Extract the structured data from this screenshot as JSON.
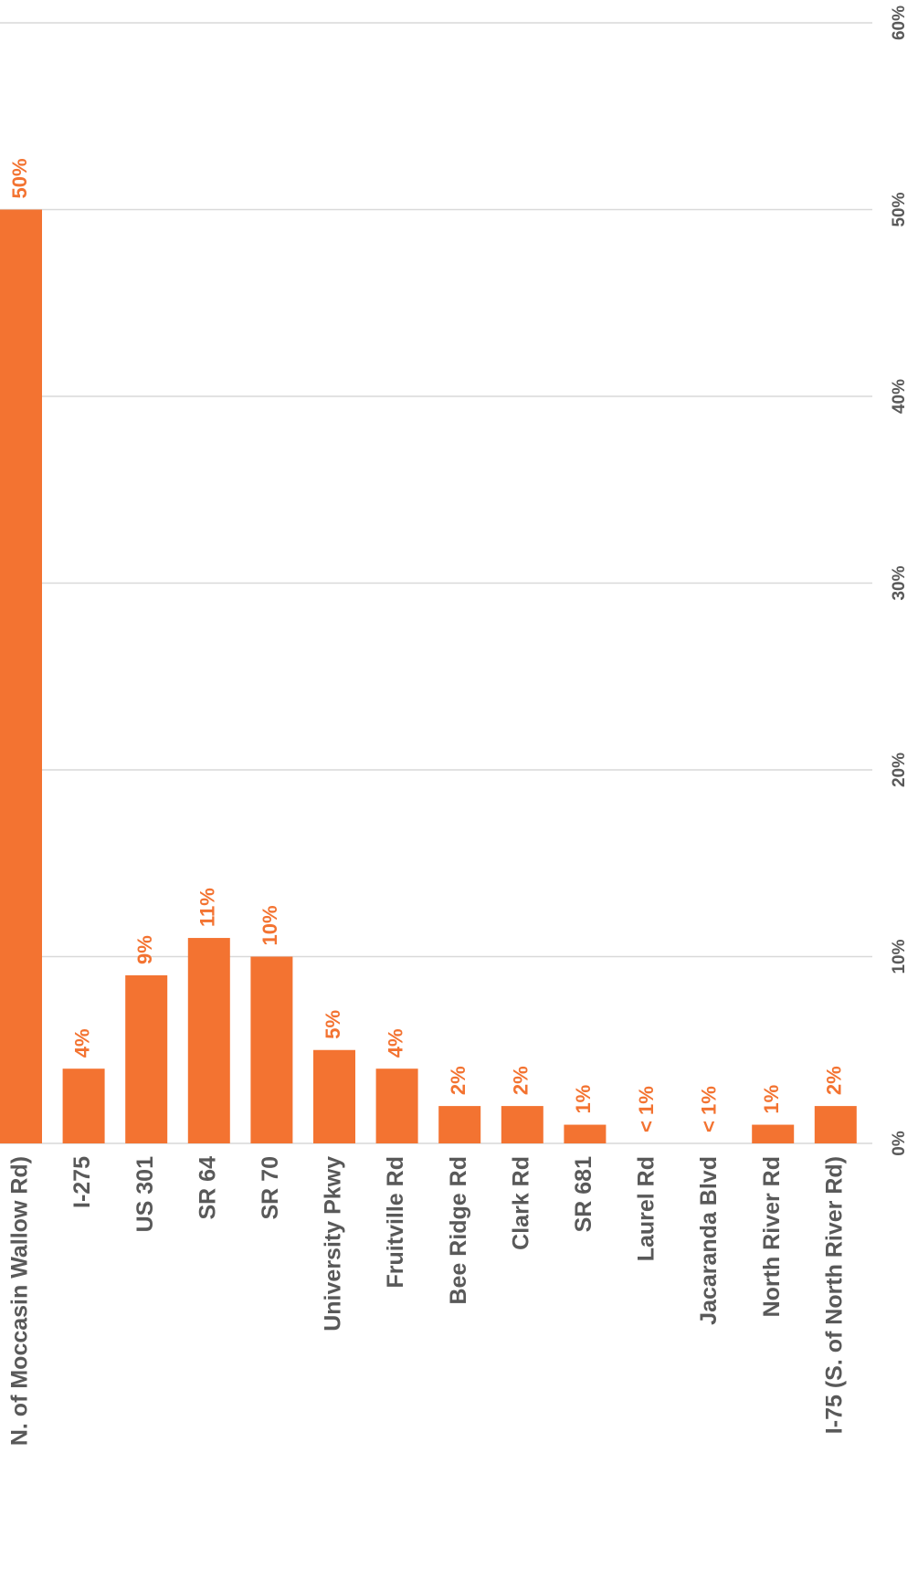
{
  "chart_data": {
    "type": "bar",
    "categories": [
      "N. of Moccasin Wallow Rd)",
      "I-275",
      "US 301",
      "SR 64",
      "SR 70",
      "University Pkwy",
      "Fruitville Rd",
      "Bee Ridge Rd",
      "Clark Rd",
      "SR 681",
      "Laurel Rd",
      "Jacaranda Blvd",
      "North River Rd",
      "I-75 (S. of North River Rd)"
    ],
    "values": [
      50,
      4,
      9,
      11,
      10,
      5,
      4,
      2,
      2,
      1,
      0,
      0,
      1,
      2
    ],
    "value_labels": [
      "50%",
      "4%",
      "9%",
      "11%",
      "10%",
      "5%",
      "4%",
      "2%",
      "2%",
      "1%",
      "< 1%",
      "< 1%",
      "1%",
      "2%"
    ],
    "color": "#f37331",
    "ylim": [
      0,
      60
    ],
    "yticks": [
      {
        "value": 0,
        "label": "0%"
      },
      {
        "value": 10,
        "label": "10%"
      },
      {
        "value": 20,
        "label": "20%"
      },
      {
        "value": 30,
        "label": "30%"
      },
      {
        "value": 40,
        "label": "40%"
      },
      {
        "value": 50,
        "label": "50%"
      },
      {
        "value": 60,
        "label": "60%"
      }
    ],
    "grid": true
  }
}
